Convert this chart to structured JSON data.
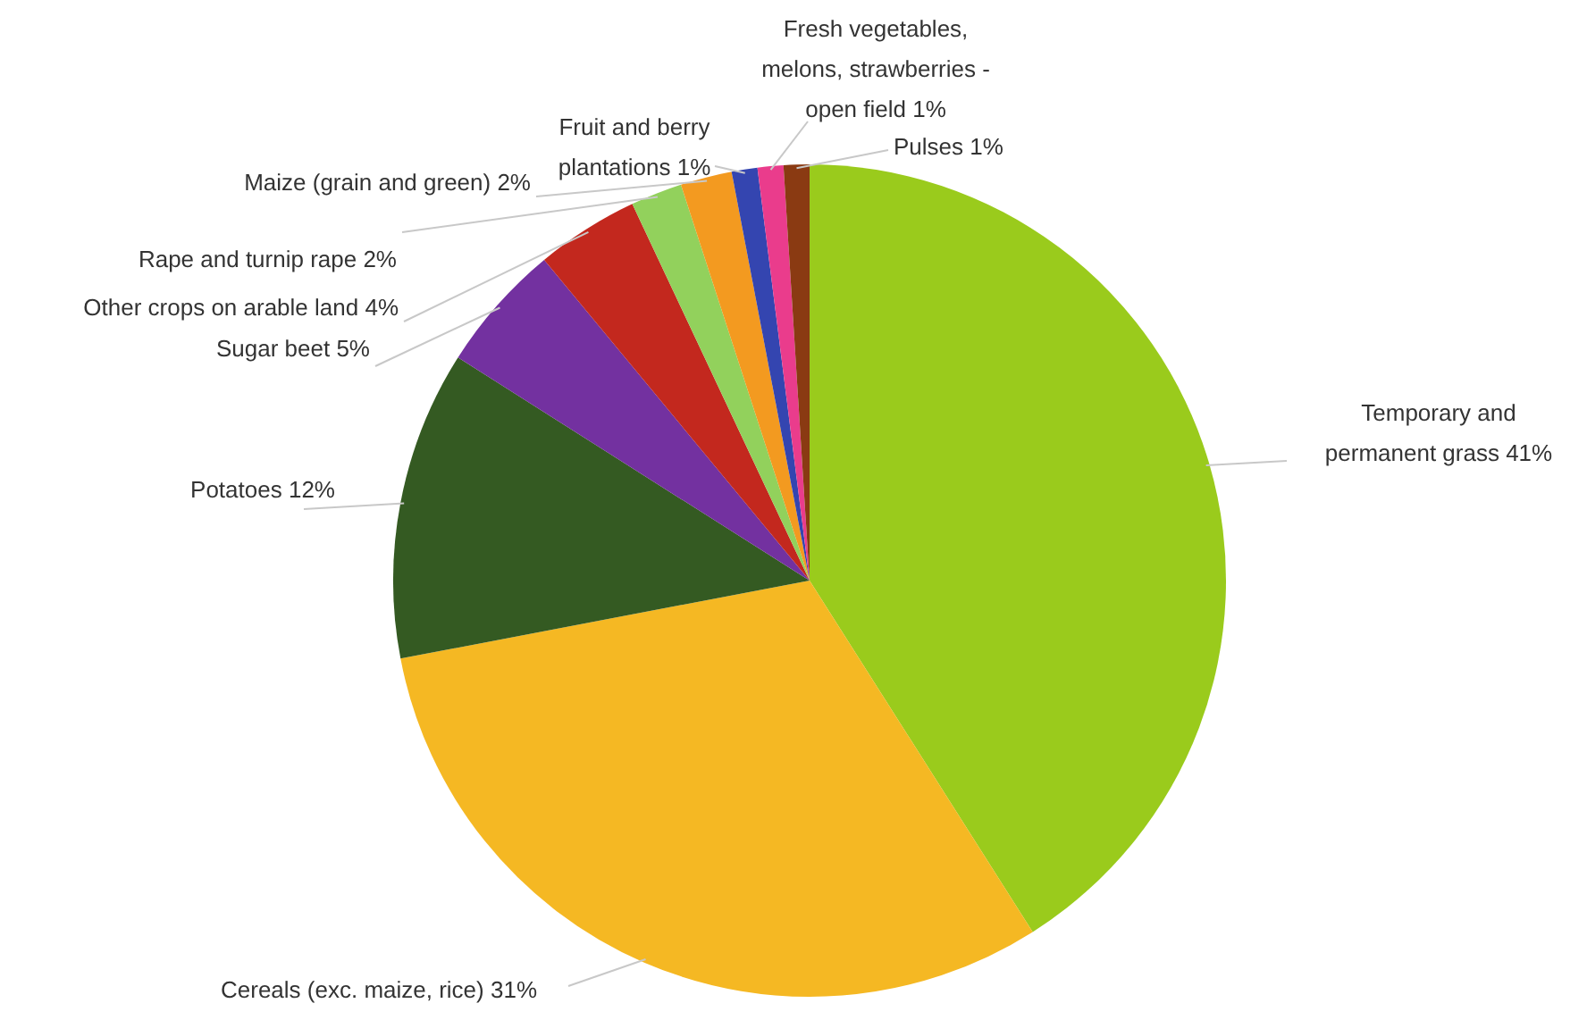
{
  "chart_data": {
    "type": "pie",
    "categories": [
      "Temporary and permanent grass",
      "Cereals (exc. maize, rice)",
      "Potatoes",
      "Sugar beet",
      "Other crops on arable land",
      "Rape and turnip rape",
      "Maize (grain and green)",
      "Fruit and berry plantations",
      "Fresh vegetables, melons, strawberries - open field",
      "Pulses"
    ],
    "values": [
      41,
      31,
      12,
      5,
      4,
      2,
      2,
      1,
      1,
      1
    ],
    "value_labels": [
      "41%",
      "31%",
      "12%",
      "5%",
      "4%",
      "2%",
      "2%",
      "1%",
      "1%",
      "1%"
    ],
    "colors": [
      "#9acb1c",
      "#f5b823",
      "#345a22",
      "#7331a0",
      "#c3281e",
      "#92d15c",
      "#f39a20",
      "#3445b0",
      "#ea3c8c",
      "#8a3a12"
    ],
    "legend": false
  }
}
